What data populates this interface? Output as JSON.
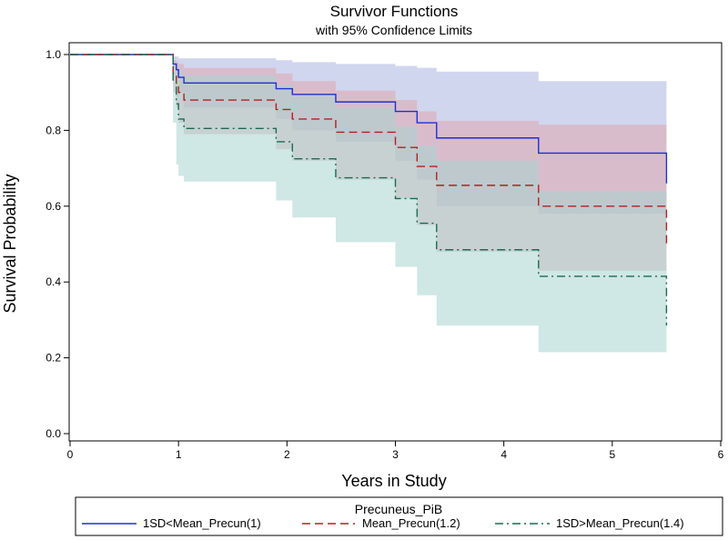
{
  "chart_data": {
    "type": "line",
    "title": "Survivor Functions",
    "subtitle": "with 95% Confidence Limits",
    "xlabel": "Years in Study",
    "ylabel": "Survival Probability",
    "xlim": [
      0,
      6
    ],
    "ylim": [
      0,
      1.0
    ],
    "x_ticks": [
      0,
      1,
      2,
      3,
      4,
      5,
      6
    ],
    "y_ticks": [
      0.0,
      0.2,
      0.4,
      0.6,
      0.8,
      1.0
    ],
    "x_tick_labels": [
      "0",
      "1",
      "2",
      "3",
      "4",
      "5",
      "6"
    ],
    "y_tick_labels": [
      "0.0",
      "0.2",
      "0.4",
      "0.6",
      "0.8",
      "1.0"
    ],
    "legend": {
      "title": "Precuneus_PiB",
      "position": "bottom",
      "entries": [
        "1SD<Mean_Precun(1)",
        "Mean_Precun(1.2)",
        "1SD>Mean_Precun(1.4)"
      ]
    },
    "series": [
      {
        "name": "1SD<Mean_Precun(1)",
        "color": "#1f2fd0",
        "band_color": "#aab4e0",
        "dash": "solid",
        "steps": [
          [
            0,
            1.0
          ],
          [
            0.95,
            0.975
          ],
          [
            0.98,
            0.96
          ],
          [
            1.0,
            0.94
          ],
          [
            1.05,
            0.925
          ],
          [
            1.9,
            0.91
          ],
          [
            2.05,
            0.895
          ],
          [
            2.45,
            0.875
          ],
          [
            3.0,
            0.85
          ],
          [
            3.2,
            0.82
          ],
          [
            3.38,
            0.78
          ],
          [
            4.32,
            0.74
          ],
          [
            5.5,
            0.66
          ]
        ],
        "lower": [
          [
            0,
            1.0
          ],
          [
            0.95,
            0.96
          ],
          [
            0.98,
            0.94
          ],
          [
            1.0,
            0.9
          ],
          [
            1.05,
            0.86
          ],
          [
            1.9,
            0.83
          ],
          [
            2.05,
            0.8
          ],
          [
            2.45,
            0.77
          ],
          [
            3.0,
            0.72
          ],
          [
            3.2,
            0.67
          ],
          [
            3.38,
            0.6
          ],
          [
            4.32,
            0.58
          ],
          [
            5.5,
            0.58
          ]
        ],
        "upper": [
          [
            0,
            1.0
          ],
          [
            0.95,
            0.995
          ],
          [
            0.98,
            0.995
          ],
          [
            1.0,
            0.99
          ],
          [
            1.05,
            0.99
          ],
          [
            1.9,
            0.985
          ],
          [
            2.05,
            0.98
          ],
          [
            2.45,
            0.975
          ],
          [
            3.0,
            0.97
          ],
          [
            3.2,
            0.965
          ],
          [
            3.38,
            0.955
          ],
          [
            4.32,
            0.93
          ],
          [
            5.5,
            0.93
          ]
        ]
      },
      {
        "name": "Mean_Precun(1.2)",
        "color": "#b02020",
        "band_color": "#e0a8b0",
        "dash": "dash",
        "steps": [
          [
            0,
            1.0
          ],
          [
            0.95,
            0.95
          ],
          [
            0.98,
            0.92
          ],
          [
            1.0,
            0.9
          ],
          [
            1.05,
            0.88
          ],
          [
            1.9,
            0.855
          ],
          [
            2.05,
            0.83
          ],
          [
            2.45,
            0.795
          ],
          [
            3.0,
            0.755
          ],
          [
            3.2,
            0.705
          ],
          [
            3.38,
            0.655
          ],
          [
            4.32,
            0.6
          ],
          [
            5.5,
            0.49
          ]
        ],
        "lower": [
          [
            0,
            1.0
          ],
          [
            0.95,
            0.9
          ],
          [
            0.98,
            0.86
          ],
          [
            1.0,
            0.82
          ],
          [
            1.05,
            0.79
          ],
          [
            1.9,
            0.75
          ],
          [
            2.05,
            0.72
          ],
          [
            2.45,
            0.67
          ],
          [
            3.0,
            0.62
          ],
          [
            3.2,
            0.55
          ],
          [
            3.38,
            0.48
          ],
          [
            4.32,
            0.43
          ],
          [
            5.5,
            0.43
          ]
        ],
        "upper": [
          [
            0,
            1.0
          ],
          [
            0.95,
            0.985
          ],
          [
            0.98,
            0.98
          ],
          [
            1.0,
            0.975
          ],
          [
            1.05,
            0.965
          ],
          [
            1.9,
            0.95
          ],
          [
            2.05,
            0.93
          ],
          [
            2.45,
            0.905
          ],
          [
            3.0,
            0.88
          ],
          [
            3.2,
            0.85
          ],
          [
            3.38,
            0.825
          ],
          [
            4.32,
            0.815
          ],
          [
            5.5,
            0.815
          ]
        ]
      },
      {
        "name": "1SD>Mean_Precun(1.4)",
        "color": "#1a6a50",
        "band_color": "#a8d4d0",
        "dash": "dashdot",
        "steps": [
          [
            0,
            1.0
          ],
          [
            0.95,
            0.93
          ],
          [
            0.98,
            0.87
          ],
          [
            1.0,
            0.83
          ],
          [
            1.05,
            0.805
          ],
          [
            1.9,
            0.77
          ],
          [
            2.05,
            0.725
          ],
          [
            2.45,
            0.675
          ],
          [
            3.0,
            0.62
          ],
          [
            3.2,
            0.555
          ],
          [
            3.38,
            0.485
          ],
          [
            4.32,
            0.415
          ],
          [
            5.5,
            0.285
          ]
        ],
        "lower": [
          [
            0,
            1.0
          ],
          [
            0.95,
            0.82
          ],
          [
            0.98,
            0.71
          ],
          [
            1.0,
            0.68
          ],
          [
            1.05,
            0.665
          ],
          [
            1.9,
            0.615
          ],
          [
            2.05,
            0.57
          ],
          [
            2.45,
            0.505
          ],
          [
            3.0,
            0.44
          ],
          [
            3.2,
            0.365
          ],
          [
            3.38,
            0.285
          ],
          [
            4.32,
            0.215
          ],
          [
            5.5,
            0.1
          ]
        ],
        "upper": [
          [
            0,
            1.0
          ],
          [
            0.95,
            0.98
          ],
          [
            0.98,
            0.97
          ],
          [
            1.0,
            0.96
          ],
          [
            1.05,
            0.945
          ],
          [
            1.9,
            0.92
          ],
          [
            2.05,
            0.89
          ],
          [
            2.45,
            0.86
          ],
          [
            3.0,
            0.81
          ],
          [
            3.2,
            0.76
          ],
          [
            3.38,
            0.72
          ],
          [
            4.32,
            0.64
          ],
          [
            5.5,
            0.64
          ]
        ]
      }
    ],
    "x_end": 5.5
  }
}
